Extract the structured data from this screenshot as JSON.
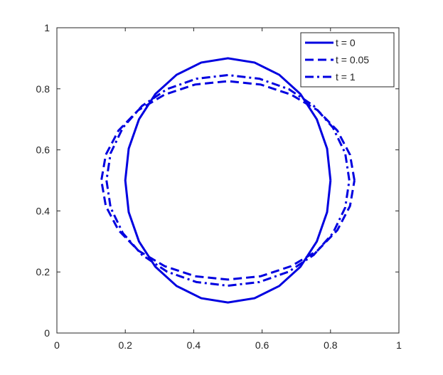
{
  "chart_data": {
    "type": "line",
    "xlim": [
      0,
      1
    ],
    "ylim": [
      0,
      1
    ],
    "xticks": [
      0,
      0.2,
      0.4,
      0.6,
      0.8,
      1
    ],
    "yticks": [
      0,
      0.2,
      0.4,
      0.6,
      0.8,
      1
    ],
    "legend": "upper right",
    "series": [
      {
        "name": "t = 0",
        "color": "#0000e0",
        "style": "solid",
        "x": [
          0.8,
          0.79,
          0.76,
          0.712,
          0.65,
          0.578,
          0.5,
          0.422,
          0.35,
          0.288,
          0.24,
          0.21,
          0.2,
          0.21,
          0.24,
          0.288,
          0.35,
          0.422,
          0.5,
          0.578,
          0.65,
          0.712,
          0.76,
          0.79,
          0.8
        ],
        "values": [
          0.5,
          0.604,
          0.7,
          0.783,
          0.846,
          0.886,
          0.9,
          0.886,
          0.846,
          0.783,
          0.7,
          0.604,
          0.5,
          0.396,
          0.3,
          0.217,
          0.154,
          0.114,
          0.1,
          0.114,
          0.154,
          0.217,
          0.3,
          0.396,
          0.5
        ]
      },
      {
        "name": "t = 0.05",
        "color": "#0000e0",
        "style": "dashed",
        "x": [
          0.87,
          0.857,
          0.82,
          0.762,
          0.685,
          0.596,
          0.5,
          0.404,
          0.315,
          0.238,
          0.18,
          0.143,
          0.13,
          0.143,
          0.18,
          0.238,
          0.315,
          0.404,
          0.5,
          0.596,
          0.685,
          0.762,
          0.82,
          0.857,
          0.87
        ],
        "values": [
          0.5,
          0.584,
          0.663,
          0.73,
          0.781,
          0.814,
          0.825,
          0.814,
          0.781,
          0.73,
          0.663,
          0.584,
          0.5,
          0.416,
          0.337,
          0.27,
          0.219,
          0.186,
          0.175,
          0.186,
          0.219,
          0.27,
          0.337,
          0.416,
          0.5
        ]
      },
      {
        "name": "t = 1",
        "color": "#0000e0",
        "style": "dashdot",
        "x": [
          0.855,
          0.843,
          0.807,
          0.751,
          0.678,
          0.592,
          0.5,
          0.408,
          0.322,
          0.249,
          0.193,
          0.157,
          0.145,
          0.157,
          0.193,
          0.249,
          0.322,
          0.408,
          0.5,
          0.592,
          0.678,
          0.751,
          0.807,
          0.843,
          0.855
        ],
        "values": [
          0.5,
          0.589,
          0.673,
          0.744,
          0.799,
          0.833,
          0.845,
          0.833,
          0.799,
          0.744,
          0.673,
          0.589,
          0.5,
          0.411,
          0.327,
          0.256,
          0.201,
          0.167,
          0.155,
          0.167,
          0.201,
          0.256,
          0.327,
          0.411,
          0.5
        ]
      }
    ]
  }
}
